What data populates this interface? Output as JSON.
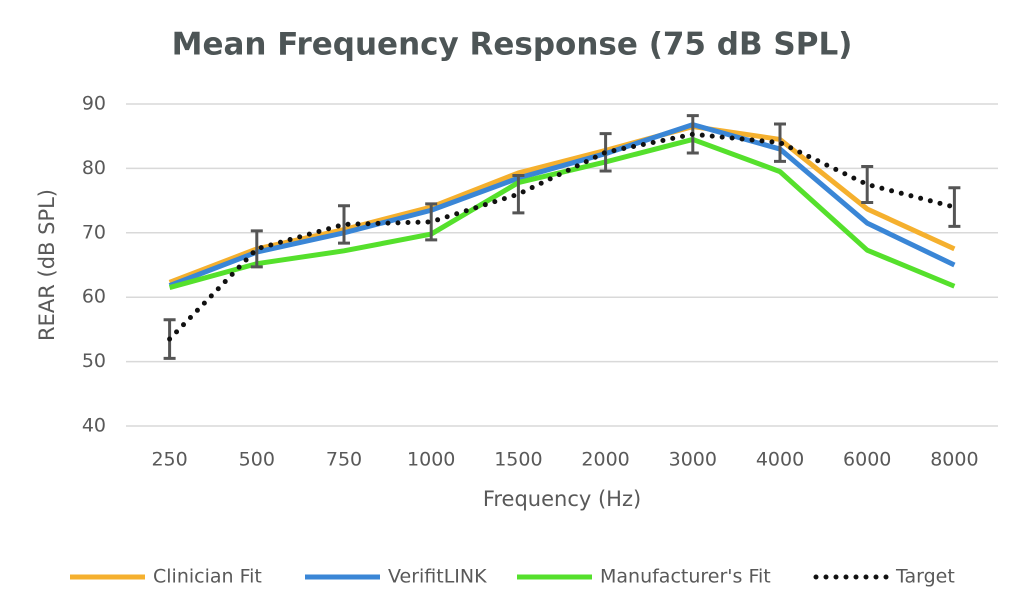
{
  "chart_data": {
    "type": "line",
    "title": "Mean Frequency Response  (75 dB SPL)",
    "x_label": "Frequency (Hz)",
    "y_label": "REAR (dB SPL)",
    "categories": [
      "250",
      "500",
      "750",
      "1000",
      "1500",
      "2000",
      "3000",
      "4000",
      "6000",
      "8000"
    ],
    "ylim": [
      40,
      90
    ],
    "yticks": [
      40,
      50,
      60,
      70,
      80,
      90
    ],
    "grid": true,
    "legend": "bottom",
    "series": [
      {
        "name": "Clinician Fit",
        "color": "#f5b02e",
        "style": "solid",
        "values": [
          62.3,
          67.5,
          70.5,
          74,
          79.3,
          82.8,
          86.5,
          84.5,
          73.7,
          67.5
        ]
      },
      {
        "name": "VerifitLINK",
        "color": "#3a86d6",
        "style": "solid",
        "values": [
          61.8,
          67,
          70,
          73.5,
          78.5,
          82.3,
          86.8,
          83,
          71.5,
          65
        ]
      },
      {
        "name": "Manufacturer's Fit",
        "color": "#55e02c",
        "style": "solid",
        "values": [
          61.5,
          65.2,
          67.2,
          69.8,
          77.8,
          81,
          84.5,
          79.5,
          67.3,
          61.7
        ]
      },
      {
        "name": "Target",
        "color": "#111111",
        "style": "dotted",
        "values": [
          53.5,
          67.5,
          71.3,
          71.7,
          76,
          82.5,
          85.3,
          84,
          77.5,
          74
        ],
        "errors": [
          3,
          2.8,
          2.9,
          2.8,
          2.9,
          2.9,
          2.9,
          2.9,
          2.8,
          3
        ],
        "error_color": "#555555"
      }
    ]
  }
}
